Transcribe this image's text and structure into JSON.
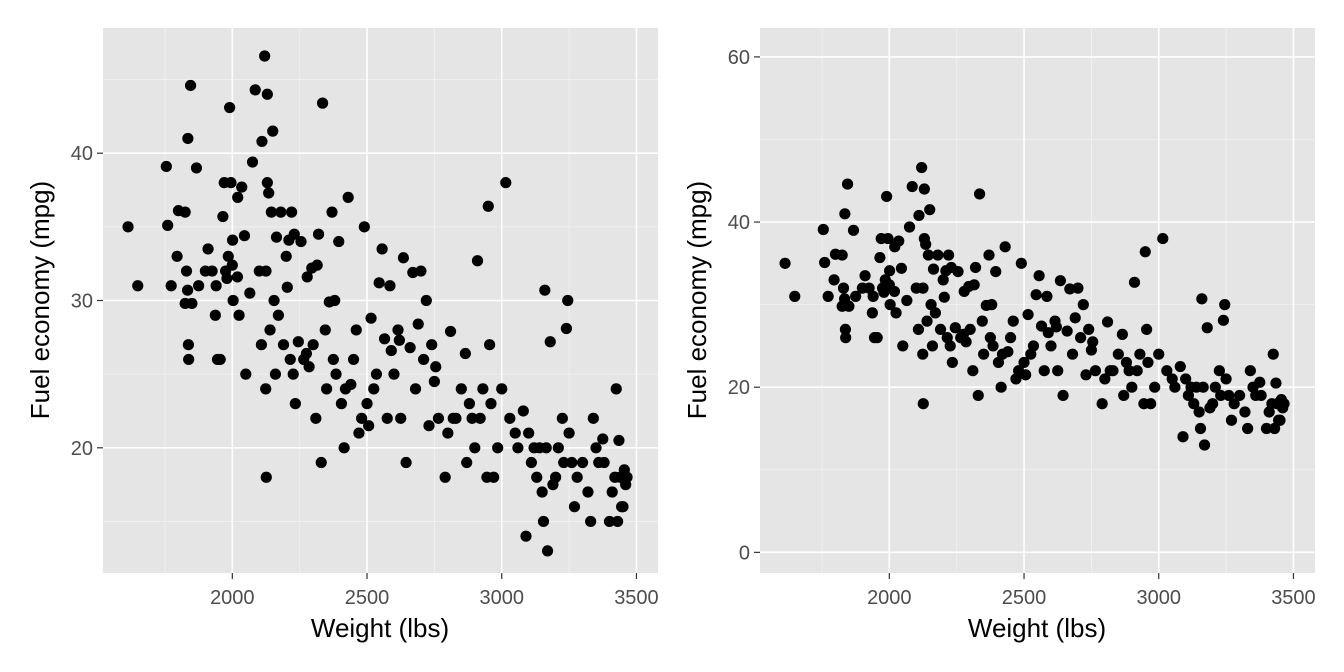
{
  "colors": {
    "panel": "#e5e5e5",
    "grid": "#ffffff",
    "point": "#000000",
    "tick_text": "#4d4d4d"
  },
  "chart_data": [
    {
      "type": "scatter",
      "title": "",
      "xlabel": "Weight (lbs)",
      "ylabel": "Fuel economy (mpg)",
      "xlim": [
        1520,
        3580
      ],
      "ylim": [
        11.5,
        48.5
      ],
      "xticks": [
        2000,
        2500,
        3000,
        3500
      ],
      "yticks": [
        20,
        30,
        40
      ],
      "xtick_labels": [
        "2000",
        "2500",
        "3000",
        "3500"
      ],
      "ytick_labels": [
        "20",
        "30",
        "40"
      ],
      "grid": true,
      "points": [
        [
          1613,
          35
        ],
        [
          1649,
          31
        ],
        [
          1755,
          39.1
        ],
        [
          1760,
          35.1
        ],
        [
          1773,
          31
        ],
        [
          1795,
          33
        ],
        [
          1800,
          36.1
        ],
        [
          1825,
          29.8
        ],
        [
          1825,
          36
        ],
        [
          1830,
          32
        ],
        [
          1834,
          30.7
        ],
        [
          1835,
          41
        ],
        [
          1837,
          27
        ],
        [
          1838,
          26
        ],
        [
          1845,
          44.6
        ],
        [
          1850,
          29.8
        ],
        [
          1867,
          39
        ],
        [
          1875,
          31
        ],
        [
          1900,
          32
        ],
        [
          1910,
          33.5
        ],
        [
          1925,
          32
        ],
        [
          1937,
          29
        ],
        [
          1940,
          31
        ],
        [
          1945,
          26
        ],
        [
          1955,
          26
        ],
        [
          1965,
          35.7
        ],
        [
          1970,
          38
        ],
        [
          1975,
          32
        ],
        [
          1980,
          31.5
        ],
        [
          1985,
          33
        ],
        [
          1990,
          43.1
        ],
        [
          1995,
          38
        ],
        [
          2000,
          32.4
        ],
        [
          2001,
          34.1
        ],
        [
          2003,
          30
        ],
        [
          2019,
          31.6
        ],
        [
          2020,
          37
        ],
        [
          2025,
          29
        ],
        [
          2035,
          37.7
        ],
        [
          2045,
          34.4
        ],
        [
          2050,
          25
        ],
        [
          2065,
          30.5
        ],
        [
          2075,
          39.4
        ],
        [
          2085,
          44.3
        ],
        [
          2100,
          32
        ],
        [
          2108,
          27
        ],
        [
          2110,
          40.8
        ],
        [
          2120,
          46.6
        ],
        [
          2124,
          24
        ],
        [
          2125,
          32
        ],
        [
          2126,
          18
        ],
        [
          2130,
          44
        ],
        [
          2130,
          38
        ],
        [
          2135,
          37.3
        ],
        [
          2140,
          28
        ],
        [
          2145,
          36
        ],
        [
          2150,
          41.5
        ],
        [
          2155,
          30
        ],
        [
          2160,
          25
        ],
        [
          2164,
          34.3
        ],
        [
          2171,
          29
        ],
        [
          2180,
          36
        ],
        [
          2190,
          27
        ],
        [
          2200,
          33
        ],
        [
          2204,
          30.9
        ],
        [
          2210,
          34.1
        ],
        [
          2215,
          26
        ],
        [
          2220,
          36
        ],
        [
          2226,
          25
        ],
        [
          2230,
          34.5
        ],
        [
          2234,
          23
        ],
        [
          2245,
          27.2
        ],
        [
          2255,
          34
        ],
        [
          2265,
          26
        ],
        [
          2275,
          26.4
        ],
        [
          2278,
          31.6
        ],
        [
          2285,
          25.5
        ],
        [
          2295,
          32.2
        ],
        [
          2300,
          27
        ],
        [
          2310,
          22
        ],
        [
          2315,
          32.4
        ],
        [
          2320,
          34.5
        ],
        [
          2330,
          19
        ],
        [
          2335,
          43.4
        ],
        [
          2345,
          28
        ],
        [
          2350,
          24
        ],
        [
          2360,
          29.9
        ],
        [
          2370,
          36
        ],
        [
          2375,
          26
        ],
        [
          2380,
          30
        ],
        [
          2385,
          25
        ],
        [
          2395,
          34
        ],
        [
          2405,
          23
        ],
        [
          2415,
          20
        ],
        [
          2420,
          24
        ],
        [
          2430,
          37
        ],
        [
          2440,
          24.3
        ],
        [
          2450,
          26
        ],
        [
          2460,
          28
        ],
        [
          2470,
          21
        ],
        [
          2480,
          22
        ],
        [
          2490,
          35
        ],
        [
          2500,
          23
        ],
        [
          2506,
          21.5
        ],
        [
          2515,
          28.8
        ],
        [
          2525,
          24
        ],
        [
          2535,
          25
        ],
        [
          2545,
          31.2
        ],
        [
          2556,
          33.5
        ],
        [
          2565,
          27.4
        ],
        [
          2575,
          22
        ],
        [
          2585,
          31
        ],
        [
          2590,
          26.6
        ],
        [
          2600,
          25
        ],
        [
          2615,
          28
        ],
        [
          2620,
          27.3
        ],
        [
          2625,
          22
        ],
        [
          2635,
          32.9
        ],
        [
          2645,
          19
        ],
        [
          2660,
          26.8
        ],
        [
          2670,
          31.9
        ],
        [
          2680,
          24
        ],
        [
          2690,
          28.4
        ],
        [
          2700,
          32
        ],
        [
          2710,
          26
        ],
        [
          2720,
          30
        ],
        [
          2730,
          21.5
        ],
        [
          2740,
          27
        ],
        [
          2750,
          24.5
        ],
        [
          2755,
          25.5
        ],
        [
          2765,
          22
        ],
        [
          2790,
          18
        ],
        [
          2800,
          21
        ],
        [
          2810,
          27.9
        ],
        [
          2820,
          22
        ],
        [
          2830,
          22
        ],
        [
          2850,
          24
        ],
        [
          2865,
          26.4
        ],
        [
          2870,
          19
        ],
        [
          2880,
          23
        ],
        [
          2890,
          22
        ],
        [
          2900,
          20
        ],
        [
          2910,
          32.7
        ],
        [
          2920,
          22
        ],
        [
          2930,
          24
        ],
        [
          2945,
          18
        ],
        [
          2950,
          36.4
        ],
        [
          2955,
          27
        ],
        [
          2960,
          23
        ],
        [
          2970,
          18
        ],
        [
          2985,
          20
        ],
        [
          3000,
          24
        ],
        [
          3015,
          38
        ],
        [
          3030,
          22
        ],
        [
          3050,
          21
        ],
        [
          3060,
          20
        ],
        [
          3080,
          22.5
        ],
        [
          3090,
          14
        ],
        [
          3100,
          21
        ],
        [
          3110,
          19
        ],
        [
          3120,
          20
        ],
        [
          3130,
          18
        ],
        [
          3140,
          20
        ],
        [
          3150,
          17
        ],
        [
          3155,
          15
        ],
        [
          3160,
          30.7
        ],
        [
          3165,
          20
        ],
        [
          3170,
          13
        ],
        [
          3180,
          27.2
        ],
        [
          3190,
          17.5
        ],
        [
          3200,
          18
        ],
        [
          3210,
          20
        ],
        [
          3225,
          22
        ],
        [
          3230,
          19
        ],
        [
          3240,
          28.1
        ],
        [
          3245,
          30
        ],
        [
          3250,
          21
        ],
        [
          3260,
          19
        ],
        [
          3270,
          16
        ],
        [
          3280,
          18
        ],
        [
          3300,
          19
        ],
        [
          3320,
          17
        ],
        [
          3330,
          15
        ],
        [
          3340,
          22
        ],
        [
          3350,
          20
        ],
        [
          3360,
          19
        ],
        [
          3375,
          20.6
        ],
        [
          3380,
          19
        ],
        [
          3400,
          15
        ],
        [
          3410,
          17
        ],
        [
          3420,
          18
        ],
        [
          3425,
          24
        ],
        [
          3430,
          15
        ],
        [
          3435,
          20.5
        ],
        [
          3440,
          18
        ],
        [
          3445,
          16
        ],
        [
          3450,
          16
        ],
        [
          3455,
          18.5
        ],
        [
          3460,
          17.5
        ],
        [
          3465,
          18
        ]
      ]
    },
    {
      "type": "scatter",
      "title": "",
      "xlabel": "Weight (lbs)",
      "ylabel": "Fuel economy (mpg)",
      "xlim": [
        1520,
        3580
      ],
      "ylim": [
        -2.5,
        63.5
      ],
      "xticks": [
        2000,
        2500,
        3000,
        3500
      ],
      "yticks": [
        0,
        20,
        40,
        60
      ],
      "xtick_labels": [
        "2000",
        "2500",
        "3000",
        "3500"
      ],
      "ytick_labels": [
        "0",
        "20",
        "40",
        "60"
      ],
      "grid": true,
      "same_points_as_left_panel": true
    }
  ]
}
